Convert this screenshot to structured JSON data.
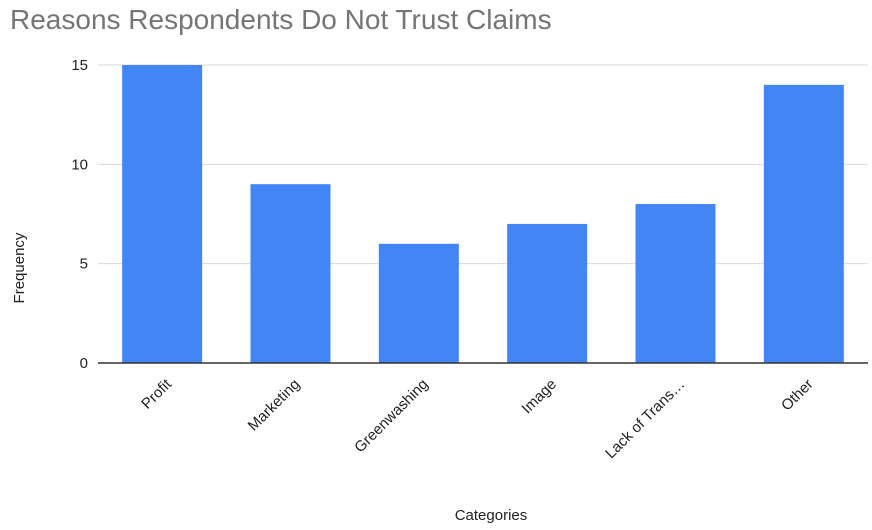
{
  "chart_data": {
    "type": "bar",
    "title": "Reasons Respondents Do Not Trust Claims",
    "xlabel": "Categories",
    "ylabel": "Frequency",
    "categories": [
      "Profit",
      "Marketing",
      "Greenwashing",
      "Image",
      "Lack of Trans…",
      "Other"
    ],
    "values": [
      15,
      9,
      6,
      7,
      8,
      14
    ],
    "ylim": [
      0,
      15
    ],
    "yticks": [
      "0",
      "5",
      "10",
      "15"
    ],
    "grid": true,
    "legend": "none",
    "colors": {
      "bar": "#4285f4",
      "gridline": "#d9d9d9",
      "baseline": "#333333",
      "title": "#757575",
      "text": "#222222"
    }
  }
}
